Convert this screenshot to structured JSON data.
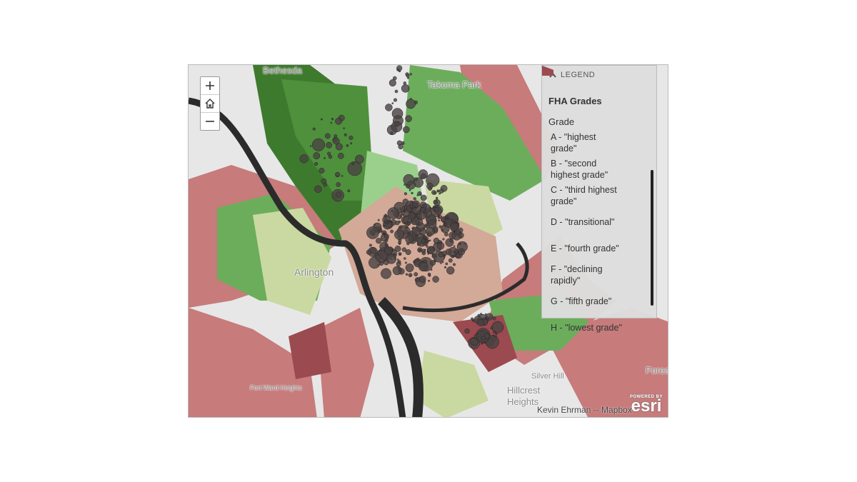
{
  "map": {
    "place_labels": [
      "Bethesda",
      "Takoma Park",
      "Arlington",
      "Fort Ward Heights",
      "Hillcrest Heights",
      "Silver Hill",
      "Forest"
    ],
    "attribution": "Kevin Ehrman -- Mapbox",
    "logo": {
      "caption": "POWERED BY",
      "name": "esri"
    }
  },
  "legend": {
    "header": "LEGEND",
    "layer_title": "FHA Grades",
    "field": "Grade",
    "items": [
      {
        "label": "A - \"highest grade\"",
        "color": "#3e7a2d"
      },
      {
        "label": "B - \"second highest grade\"",
        "color": "#4f903c"
      },
      {
        "label": "C - \"third highest grade\"",
        "color": "#6cad5c"
      },
      {
        "label": "D - \"transitional\"",
        "color": "#9bd08c"
      },
      {
        "label": "E - \"fourth grade\"",
        "color": "#c9d9a1"
      },
      {
        "label": "F - \"declining rapidly\"",
        "color": "#d3a998"
      },
      {
        "label": "G - \"fifth grade\"",
        "color": "#c77b7b"
      },
      {
        "label": "H - \"lowest grade\"",
        "color": "#9b4a50"
      }
    ]
  }
}
